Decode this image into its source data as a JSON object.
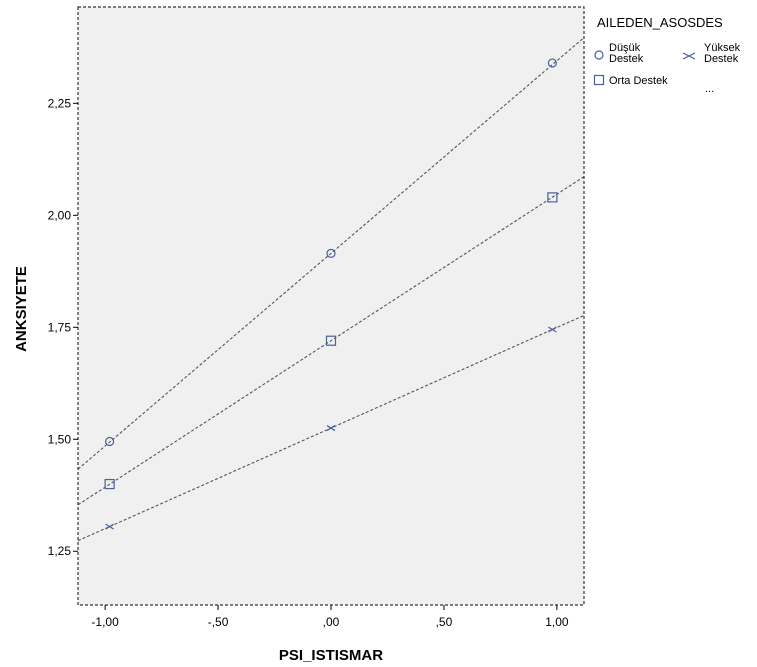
{
  "chart_data": {
    "type": "scatter",
    "xlabel": "PSI_ISTISMAR",
    "ylabel": "ANKSIYETE",
    "xlim": [
      -1.12,
      1.12
    ],
    "ylim": [
      1.13,
      2.465
    ],
    "x_ticks": [
      {
        "value": -1.0,
        "label": "-1,00"
      },
      {
        "value": -0.5,
        "label": "-,50"
      },
      {
        "value": 0.0,
        "label": ",00"
      },
      {
        "value": 0.5,
        "label": ",50"
      },
      {
        "value": 1.0,
        "label": "1,00"
      }
    ],
    "y_ticks": [
      {
        "value": 1.25,
        "label": "1,25"
      },
      {
        "value": 1.5,
        "label": "1,50"
      },
      {
        "value": 1.75,
        "label": "1,75"
      },
      {
        "value": 2.0,
        "label": "2,00"
      },
      {
        "value": 2.25,
        "label": "2,25"
      }
    ],
    "grid": false,
    "background_color": "#f0f0f0",
    "marker_color": "#4a5f9e",
    "line_color": "#555555",
    "legend": {
      "title": "AILEDEN_ASOSDES",
      "placement": "top-right",
      "more_indicator": "..."
    },
    "series": [
      {
        "key": "dusuk",
        "name_lines": [
          "Düşük",
          "Destek"
        ],
        "marker": "circle",
        "x": [
          -0.98,
          0.0,
          0.98
        ],
        "y": [
          1.495,
          1.915,
          2.34
        ],
        "fit": {
          "slope": 0.43,
          "intercept": 1.915
        }
      },
      {
        "key": "orta",
        "name_lines": [
          "Orta Destek"
        ],
        "marker": "square",
        "x": [
          -0.98,
          0.0,
          0.98
        ],
        "y": [
          1.4,
          1.72,
          2.04
        ],
        "fit": {
          "slope": 0.327,
          "intercept": 1.72
        }
      },
      {
        "key": "yuksek",
        "name_lines": [
          "Yüksek",
          "Destek"
        ],
        "marker": "x",
        "x": [
          -0.98,
          0.0,
          0.98
        ],
        "y": [
          1.305,
          1.525,
          1.745
        ],
        "fit": {
          "slope": 0.2245,
          "intercept": 1.525
        }
      }
    ]
  }
}
